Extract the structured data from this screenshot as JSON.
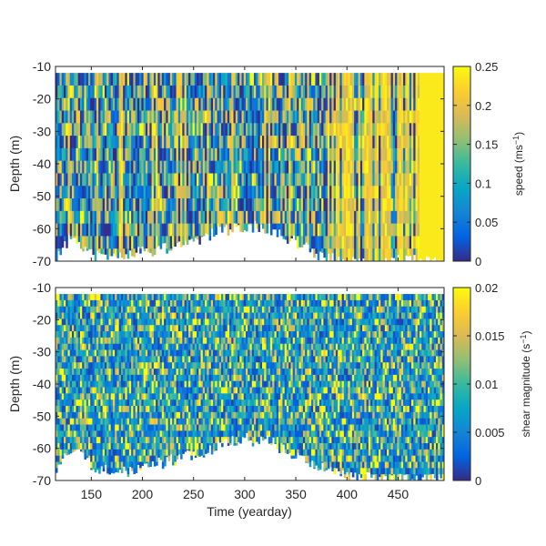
{
  "chart_data": [
    {
      "type": "heatmap",
      "panel": "top",
      "xlabel": "",
      "ylabel": "Depth (m)",
      "xlim": [
        115,
        495
      ],
      "ylim": [
        -70,
        -10
      ],
      "x_ticks": [
        150,
        200,
        250,
        300,
        350,
        400,
        450
      ],
      "x_tick_labels_shown": false,
      "y_ticks": [
        -70,
        -60,
        -50,
        -40,
        -30,
        -20,
        -10
      ],
      "y_tick_labels": [
        "-70",
        "-60",
        "-50",
        "-40",
        "-30",
        "-20",
        "-10"
      ],
      "colorbar": {
        "label_main": "speed (ms",
        "label_sup": "−1",
        "label_end": ")",
        "range": [
          0,
          0.25
        ],
        "ticks": [
          0,
          0.05,
          0.1,
          0.15,
          0.2,
          0.25
        ],
        "tick_labels": [
          "0",
          "0.05",
          "0.1",
          "0.15",
          "0.2",
          "0.25"
        ],
        "colormap": "parula"
      },
      "data_bottom_depth": [
        {
          "x": 115,
          "depth": -70
        },
        {
          "x": 130,
          "depth": -62
        },
        {
          "x": 150,
          "depth": -68
        },
        {
          "x": 175,
          "depth": -69
        },
        {
          "x": 200,
          "depth": -67
        },
        {
          "x": 225,
          "depth": -66
        },
        {
          "x": 250,
          "depth": -64
        },
        {
          "x": 275,
          "depth": -61
        },
        {
          "x": 300,
          "depth": -59
        },
        {
          "x": 325,
          "depth": -60
        },
        {
          "x": 350,
          "depth": -64
        },
        {
          "x": 375,
          "depth": -69
        },
        {
          "x": 400,
          "depth": -70
        },
        {
          "x": 495,
          "depth": -70
        }
      ],
      "description_values": "time-depth field of current speed, mostly 0–0.1 with high (yellow, ≥0.2) vertical bands increasing after yearday ~380"
    },
    {
      "type": "heatmap",
      "panel": "bottom",
      "xlabel": "Time (yearday)",
      "ylabel": "Depth (m)",
      "xlim": [
        115,
        495
      ],
      "ylim": [
        -70,
        -10
      ],
      "x_ticks": [
        150,
        200,
        250,
        300,
        350,
        400,
        450
      ],
      "x_tick_labels": [
        "150",
        "200",
        "250",
        "300",
        "350",
        "400",
        "450"
      ],
      "y_ticks": [
        -70,
        -60,
        -50,
        -40,
        -30,
        -20,
        -10
      ],
      "y_tick_labels": [
        "-70",
        "-60",
        "-50",
        "-40",
        "-30",
        "-20",
        "-10"
      ],
      "colorbar": {
        "label_main": "shear magnitude (s",
        "label_sup": "−1",
        "label_end": ")",
        "range": [
          0,
          0.02
        ],
        "ticks": [
          0,
          0.005,
          0.01,
          0.015,
          0.02
        ],
        "tick_labels": [
          "0",
          "0.005",
          "0.01",
          "0.015",
          "0.02"
        ],
        "colormap": "parula"
      },
      "data_bottom_depth": [
        {
          "x": 115,
          "depth": -68
        },
        {
          "x": 130,
          "depth": -60
        },
        {
          "x": 150,
          "depth": -65
        },
        {
          "x": 175,
          "depth": -68
        },
        {
          "x": 200,
          "depth": -66
        },
        {
          "x": 225,
          "depth": -64
        },
        {
          "x": 250,
          "depth": -62
        },
        {
          "x": 275,
          "depth": -59
        },
        {
          "x": 300,
          "depth": -57
        },
        {
          "x": 325,
          "depth": -58
        },
        {
          "x": 350,
          "depth": -62
        },
        {
          "x": 375,
          "depth": -66
        },
        {
          "x": 400,
          "depth": -69
        },
        {
          "x": 495,
          "depth": -70
        }
      ],
      "description_values": "time-depth field of shear magnitude, noisy mix of 0–0.02 values across all depths"
    }
  ]
}
